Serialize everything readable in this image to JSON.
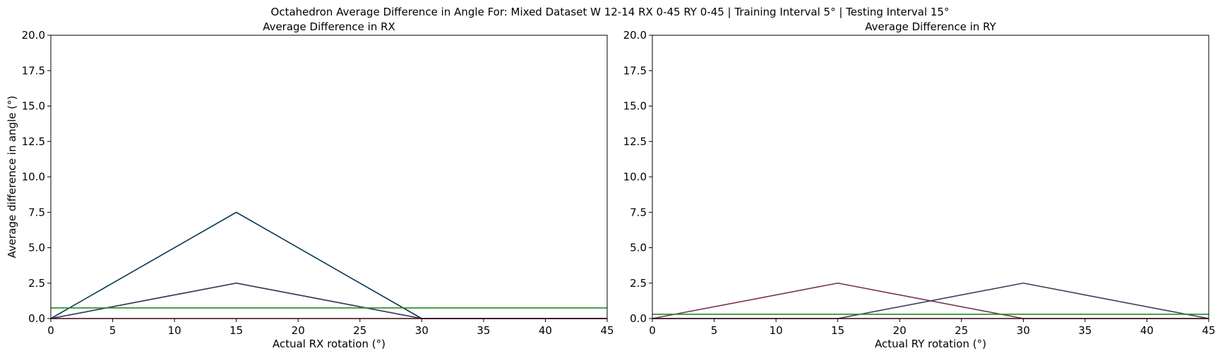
{
  "suptitle": "Octahedron Average Difference in Angle For: Mixed Dataset W 12-14 RX 0-45 RY 0-45 | Training Interval 5° | Testing Interval 15°",
  "chart_data": [
    {
      "type": "line",
      "title": "Average Difference in RX",
      "xlabel": "Actual RX rotation (°)",
      "ylabel": "Average difference in angle (°)",
      "xlim": [
        0,
        45
      ],
      "ylim": [
        0,
        20
      ],
      "xticks": [
        "0",
        "5",
        "10",
        "15",
        "20",
        "25",
        "30",
        "35",
        "40",
        "45"
      ],
      "yticks": [
        "0.0",
        "2.5",
        "5.0",
        "7.5",
        "10.0",
        "12.5",
        "15.0",
        "17.5",
        "20.0"
      ],
      "grid": false,
      "series": [
        {
          "color": "#0b3a52",
          "x": [
            0,
            15,
            30,
            45
          ],
          "y": [
            0,
            7.5,
            0,
            0
          ]
        },
        {
          "color": "#7a3050",
          "x": [
            0,
            15,
            30,
            45
          ],
          "y": [
            0,
            2.5,
            0,
            0
          ]
        },
        {
          "color": "#3d3d5c",
          "x": [
            0,
            15,
            30,
            45
          ],
          "y": [
            0,
            2.5,
            0,
            0
          ]
        },
        {
          "color": "#a01830",
          "x": [
            0,
            15,
            30,
            45
          ],
          "y": [
            0,
            0,
            0,
            0
          ]
        },
        {
          "color": "#228b22",
          "x": [
            0,
            45
          ],
          "y": [
            0.75,
            0.75
          ]
        }
      ]
    },
    {
      "type": "line",
      "title": "Average Difference in RY",
      "xlabel": "Actual RY rotation (°)",
      "ylabel": "",
      "xlim": [
        0,
        45
      ],
      "ylim": [
        0,
        20
      ],
      "xticks": [
        "0",
        "5",
        "10",
        "15",
        "20",
        "25",
        "30",
        "35",
        "40",
        "45"
      ],
      "yticks": [
        "0.0",
        "2.5",
        "5.0",
        "7.5",
        "10.0",
        "12.5",
        "15.0",
        "17.5",
        "20.0"
      ],
      "grid": false,
      "series": [
        {
          "color": "#7a3050",
          "x": [
            0,
            15,
            30,
            45
          ],
          "y": [
            0,
            2.5,
            0,
            0
          ]
        },
        {
          "color": "#3d3d5c",
          "x": [
            0,
            15,
            30,
            45
          ],
          "y": [
            0,
            0,
            2.5,
            0
          ]
        },
        {
          "color": "#a01830",
          "x": [
            0,
            15,
            30,
            45
          ],
          "y": [
            0,
            0,
            0,
            0
          ]
        },
        {
          "color": "#228b22",
          "x": [
            0,
            45
          ],
          "y": [
            0.3,
            0.3
          ]
        }
      ]
    }
  ]
}
